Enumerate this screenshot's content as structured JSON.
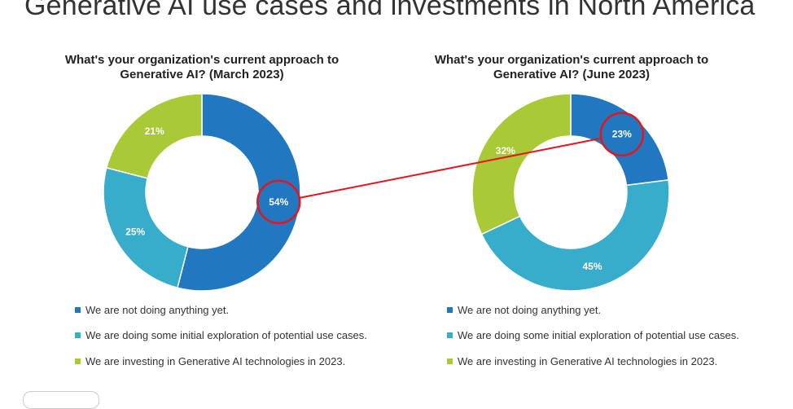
{
  "page": {
    "title": "Generative AI use cases and investments in North America"
  },
  "colors": {
    "dark_blue": "#2177c0",
    "light_blue": "#37adcb",
    "green": "#a9c936",
    "annotation": "#e8141b"
  },
  "chart_data": [
    {
      "type": "pie",
      "title": "What's your organization's current approach to Generative AI? (March 2023)",
      "labels": [
        "We are not doing anything yet.",
        "We are doing some initial exploration of potential use cases.",
        "We are investing in Generative AI technologies in 2023."
      ],
      "values": [
        54,
        25,
        21
      ],
      "value_labels": [
        "54%",
        "25%",
        "21%"
      ],
      "colors": [
        "#2177c0",
        "#37adcb",
        "#a9c936"
      ],
      "donut": true,
      "legend": "bottom",
      "highlighted": "54%"
    },
    {
      "type": "pie",
      "title": "What's your organization's current approach to Generative AI? (June 2023)",
      "labels": [
        "We are not doing anything yet.",
        "We are doing some initial exploration of potential use cases.",
        "We are investing in Generative AI technologies in 2023."
      ],
      "values": [
        23,
        45,
        32
      ],
      "value_labels": [
        "23%",
        "45%",
        "32%"
      ],
      "colors": [
        "#2177c0",
        "#37adcb",
        "#a9c936"
      ],
      "donut": true,
      "legend": "bottom",
      "highlighted": "23%"
    }
  ]
}
